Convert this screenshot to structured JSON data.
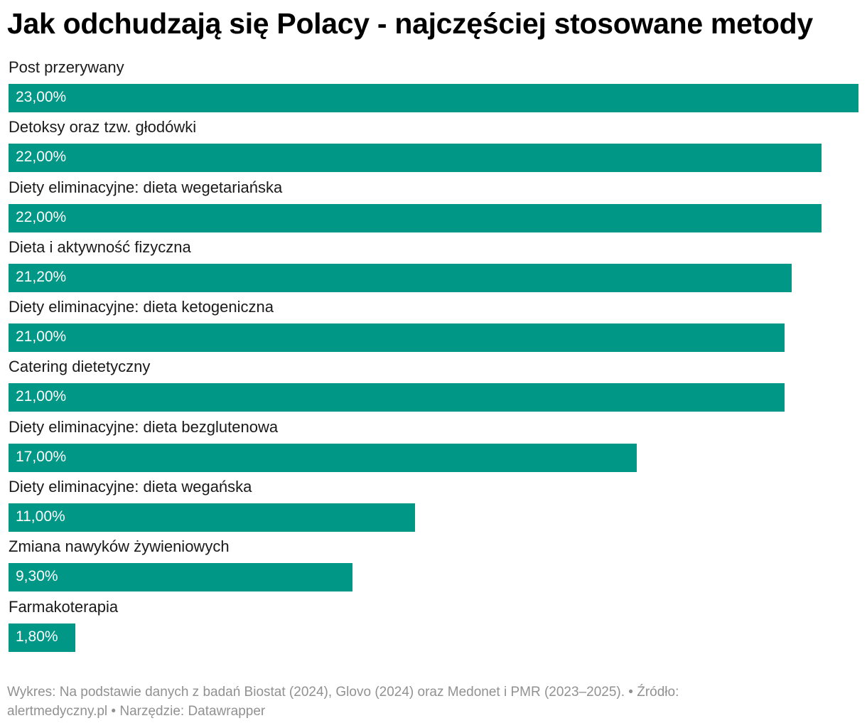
{
  "title": "Jak odchudzają się Polacy - najczęściej stosowane metody",
  "colors": {
    "bar": "#009786",
    "value_text": "#ffffff",
    "label_text": "#1a1a1a",
    "footer_text": "#919191"
  },
  "chart_data": {
    "type": "bar",
    "orientation": "horizontal",
    "title": "Jak odchudzają się Polacy - najczęściej stosowane metody",
    "categories": [
      "Post przerywany",
      "Detoksy oraz tzw. głodówki",
      "Diety eliminacyjne: dieta wegetariańska",
      "Dieta i aktywność fizyczna",
      "Diety eliminacyjne: dieta ketogeniczna",
      "Catering dietetyczny",
      "Diety eliminacyjne: dieta bezglutenowa",
      "Diety eliminacyjne: dieta wegańska",
      "Zmiana nawyków żywieniowych",
      "Farmakoterapia"
    ],
    "values": [
      23.0,
      22.0,
      22.0,
      21.2,
      21.0,
      21.0,
      17.0,
      11.0,
      9.3,
      1.8
    ],
    "value_labels": [
      "23,00%",
      "22,00%",
      "22,00%",
      "21,20%",
      "21,00%",
      "21,00%",
      "17,00%",
      "11,00%",
      "9,30%",
      "1,80%"
    ],
    "xlim": [
      0,
      23
    ],
    "xlabel": "",
    "ylabel": "",
    "grid": false
  },
  "footer": {
    "line1": "Wykres: Na podstawie danych z badań Biostat (2024), Glovo (2024) oraz Medonet i PMR (2023–2025). • Źródło:",
    "line2": "alertmedyczny.pl • Narzędzie: Datawrapper"
  }
}
